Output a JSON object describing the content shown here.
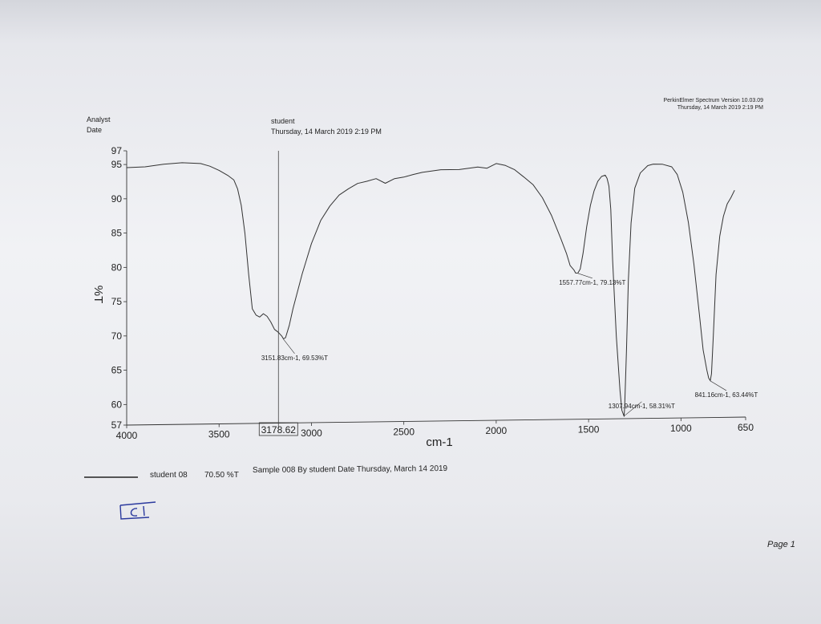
{
  "header": {
    "software": "PerkinElmer Spectrum Version 10.03.09",
    "print_date": "Thursday, 14 March 2019 2:19 PM",
    "analyst_label": "Analyst",
    "date_label": "Date",
    "analyst_value": "student",
    "date_value": "Thursday, 14 March 2019 2:19 PM"
  },
  "legend": {
    "name": "student 08",
    "value": "70.50 %T",
    "description": "Sample 008 By student Date Thursday, March 14 2019"
  },
  "handwritten": "C1",
  "page_label": "Page 1",
  "cursor_readout": "3178.62",
  "colors": {
    "trace": "#333333",
    "ink": "#2b3a9e",
    "paper": "#f1f2f5"
  },
  "chart_data": {
    "type": "line",
    "xlabel": "cm-1",
    "ylabel": "%T",
    "xlim": [
      4000,
      650
    ],
    "ylim": [
      57,
      97
    ],
    "x_reversed": true,
    "x_ticks": [
      4000,
      3500,
      3000,
      2500,
      2000,
      1500,
      1000,
      650
    ],
    "y_ticks": [
      57,
      60,
      65,
      70,
      75,
      80,
      85,
      90,
      95,
      97
    ],
    "cursor_x": 3178.62,
    "series": [
      {
        "name": "student 08",
        "x": [
          4000,
          3900,
          3800,
          3700,
          3600,
          3550,
          3500,
          3450,
          3420,
          3400,
          3380,
          3360,
          3340,
          3320,
          3300,
          3280,
          3260,
          3240,
          3220,
          3200,
          3180,
          3160,
          3151.83,
          3140,
          3120,
          3100,
          3050,
          3000,
          2950,
          2900,
          2850,
          2800,
          2750,
          2700,
          2650,
          2600,
          2550,
          2500,
          2450,
          2400,
          2300,
          2200,
          2100,
          2050,
          2000,
          1950,
          1900,
          1850,
          1800,
          1750,
          1700,
          1650,
          1620,
          1600,
          1580,
          1570,
          1557.77,
          1545,
          1530,
          1510,
          1490,
          1470,
          1450,
          1430,
          1410,
          1400,
          1390,
          1380,
          1370,
          1350,
          1330,
          1320,
          1310,
          1307.94,
          1305,
          1295,
          1285,
          1270,
          1250,
          1220,
          1180,
          1150,
          1100,
          1050,
          1020,
          990,
          960,
          930,
          900,
          880,
          860,
          850,
          841.16,
          835,
          825,
          810,
          790,
          770,
          750,
          730,
          710
        ],
        "y": [
          94.5,
          94.7,
          95.0,
          95.3,
          95.1,
          94.8,
          94.1,
          93.4,
          92.7,
          91.5,
          89,
          85,
          79,
          74,
          73,
          72.8,
          73.2,
          72.9,
          72.0,
          71.0,
          70.5,
          70.0,
          69.53,
          69.8,
          71.5,
          74,
          79,
          83.5,
          86.8,
          89,
          90.5,
          91.5,
          92.2,
          92.6,
          92.9,
          92.3,
          92.9,
          93.2,
          93.5,
          93.9,
          94.2,
          94.3,
          94.6,
          94.5,
          95.1,
          94.9,
          94.2,
          93.2,
          92.0,
          90.2,
          87.5,
          84.2,
          82.0,
          80.3,
          79.6,
          79.2,
          79.13,
          79.8,
          82,
          86,
          89,
          91.2,
          92.5,
          93.3,
          93.4,
          93.0,
          91.8,
          88.5,
          81,
          70,
          62,
          59.2,
          58.4,
          58.31,
          59.5,
          68,
          78,
          86.5,
          91.5,
          93.8,
          94.8,
          95.1,
          95.0,
          94.7,
          93.5,
          91.0,
          86.5,
          80.5,
          73.0,
          68.0,
          65.0,
          63.9,
          63.44,
          64.5,
          70,
          79,
          84.5,
          87.5,
          89.2,
          90.2,
          91.2
        ]
      }
    ],
    "annotations": [
      {
        "x": 3151.83,
        "y": 69.53,
        "label": "3151.83cm-1, 69.53%T"
      },
      {
        "x": 1557.77,
        "y": 79.13,
        "label": "1557.77cm-1, 79.13%T"
      },
      {
        "x": 1307.94,
        "y": 58.31,
        "label": "1307.94cm-1, 58.31%T"
      },
      {
        "x": 841.16,
        "y": 63.44,
        "label": "841.16cm-1, 63.44%T"
      }
    ]
  }
}
